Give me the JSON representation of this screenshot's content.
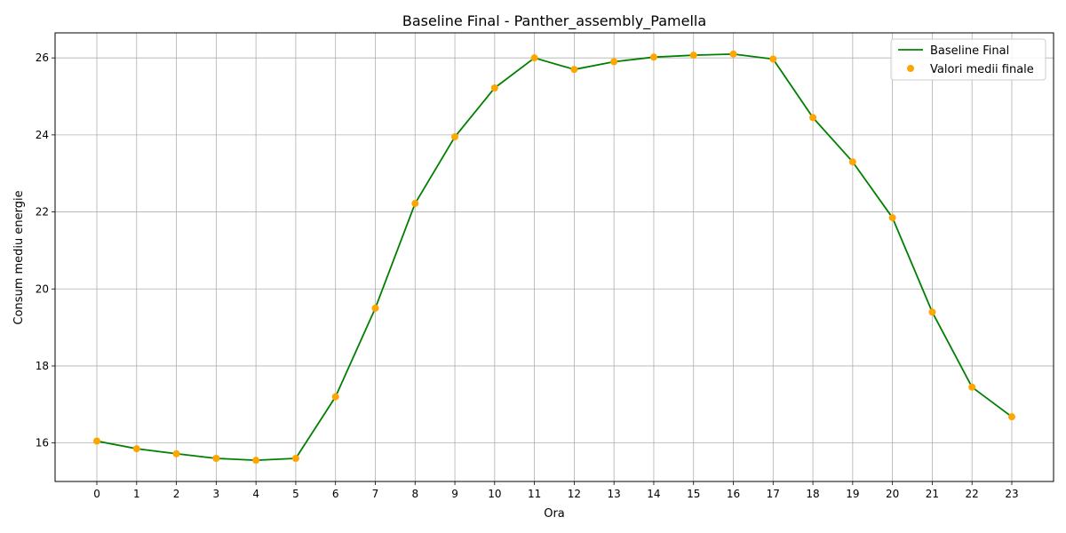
{
  "chart_data": {
    "type": "line",
    "title": "Baseline Final - Panther_assembly_Pamella",
    "xlabel": "Ora",
    "ylabel": "Consum mediu energie",
    "x": [
      0,
      1,
      2,
      3,
      4,
      5,
      6,
      7,
      8,
      9,
      10,
      11,
      12,
      13,
      14,
      15,
      16,
      17,
      18,
      19,
      20,
      21,
      22,
      23
    ],
    "x_ticks": [
      "0",
      "1",
      "2",
      "3",
      "4",
      "5",
      "6",
      "7",
      "8",
      "9",
      "10",
      "11",
      "12",
      "13",
      "14",
      "15",
      "16",
      "17",
      "18",
      "19",
      "20",
      "21",
      "22",
      "23"
    ],
    "y_ticks": [
      "16",
      "18",
      "20",
      "22",
      "24",
      "26"
    ],
    "xlim": [
      -1.05,
      24.05
    ],
    "ylim": [
      15.0,
      26.65
    ],
    "grid": true,
    "legend_position": "top-right",
    "series": [
      {
        "name": "Baseline Final",
        "kind": "line",
        "color": "#008000",
        "values": [
          16.05,
          15.85,
          15.72,
          15.6,
          15.55,
          15.6,
          17.2,
          19.5,
          22.22,
          23.95,
          25.22,
          26.0,
          25.7,
          25.9,
          26.02,
          26.07,
          26.1,
          25.97,
          24.45,
          23.3,
          21.85,
          19.4,
          17.45,
          16.68
        ]
      },
      {
        "name": "Valori medii finale",
        "kind": "scatter",
        "color": "#ffa500",
        "values": [
          16.05,
          15.85,
          15.72,
          15.6,
          15.55,
          15.6,
          17.2,
          19.5,
          22.22,
          23.95,
          25.22,
          26.0,
          25.7,
          25.9,
          26.02,
          26.07,
          26.1,
          25.97,
          24.45,
          23.3,
          21.85,
          19.4,
          17.45,
          16.68
        ]
      }
    ]
  }
}
